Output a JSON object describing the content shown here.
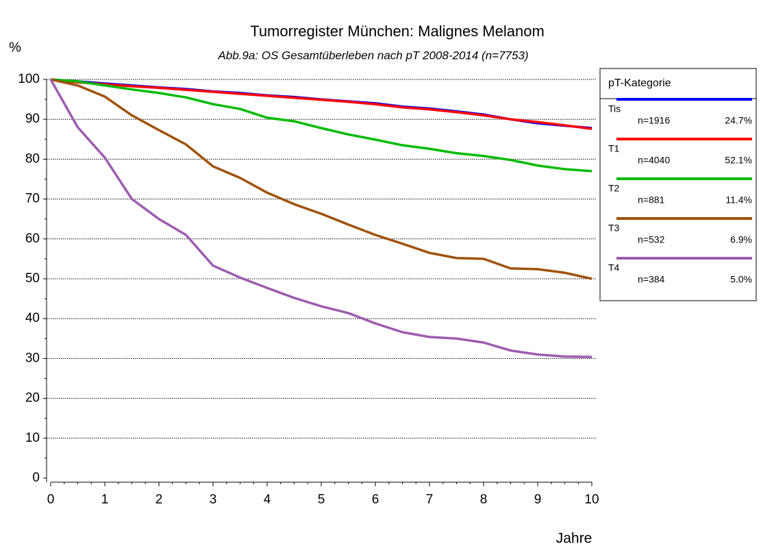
{
  "chart_data": {
    "type": "line",
    "title": "Tumorregister München: Malignes Melanom",
    "subtitle": "Abb.9a: OS Gesamtüberleben nach pT 2008-2014  (n=7753)",
    "y_label": "%",
    "x_label": "Jahre",
    "legend_title": "pT-Kategorie",
    "legend_position": "upper right",
    "grid": true,
    "xlim": [
      0,
      10
    ],
    "xticks": [
      0,
      1,
      2,
      3,
      4,
      5,
      6,
      7,
      8,
      9,
      10
    ],
    "ylim": [
      0,
      100
    ],
    "yticks": [
      0,
      10,
      20,
      30,
      40,
      50,
      60,
      70,
      80,
      90,
      100
    ],
    "x": [
      0,
      0.5,
      1,
      1.5,
      2,
      2.5,
      3,
      3.5,
      4,
      4.5,
      5,
      5.5,
      6,
      6.5,
      7,
      7.5,
      8,
      8.5,
      9,
      9.5,
      10
    ],
    "series": [
      {
        "name": "Tis",
        "n_label": "n=1916",
        "share_label": "24.7%",
        "color": "#0000ff",
        "values": [
          100,
          99.5,
          99,
          98.5,
          98,
          97.6,
          97,
          96.6,
          96,
          95.6,
          95,
          94.5,
          94,
          93.2,
          92.7,
          92,
          91.2,
          90,
          89,
          88.4,
          87.8
        ]
      },
      {
        "name": "T1",
        "n_label": "n=4040",
        "share_label": "52.1%",
        "color": "#ff0000",
        "values": [
          100,
          99.3,
          98.8,
          98.3,
          97.9,
          97.4,
          96.9,
          96.4,
          95.9,
          95.4,
          94.9,
          94.4,
          93.8,
          93,
          92.5,
          91.8,
          91,
          90,
          89.3,
          88.5,
          87.6
        ]
      },
      {
        "name": "T2",
        "n_label": "n=881",
        "share_label": "11.4%",
        "color": "#00bb00",
        "values": [
          100,
          99.5,
          98.5,
          97.5,
          96.6,
          95.5,
          93.8,
          92.6,
          90.4,
          89.5,
          87.8,
          86.2,
          84.9,
          83.5,
          82.6,
          81.5,
          80.8,
          79.8,
          78.4,
          77.5,
          77
        ]
      },
      {
        "name": "T3",
        "n_label": "n=532",
        "share_label": "6.9%",
        "color": "#a0520a",
        "values": [
          100,
          98.5,
          95.7,
          91,
          87.3,
          83.7,
          78.2,
          75.3,
          71.6,
          68.7,
          66.3,
          63.6,
          61,
          58.8,
          56.5,
          55.2,
          55,
          52.6,
          52.4,
          51.5,
          50
        ]
      },
      {
        "name": "T4",
        "n_label": "n=384",
        "share_label": "5.0%",
        "color": "#9e5bb0",
        "values": [
          100,
          88,
          80.4,
          70,
          65,
          61,
          53.3,
          50.3,
          47.7,
          45.2,
          43.1,
          41.4,
          38.8,
          36.6,
          35.4,
          35,
          34,
          32,
          31,
          30.5,
          30.4
        ]
      }
    ]
  }
}
